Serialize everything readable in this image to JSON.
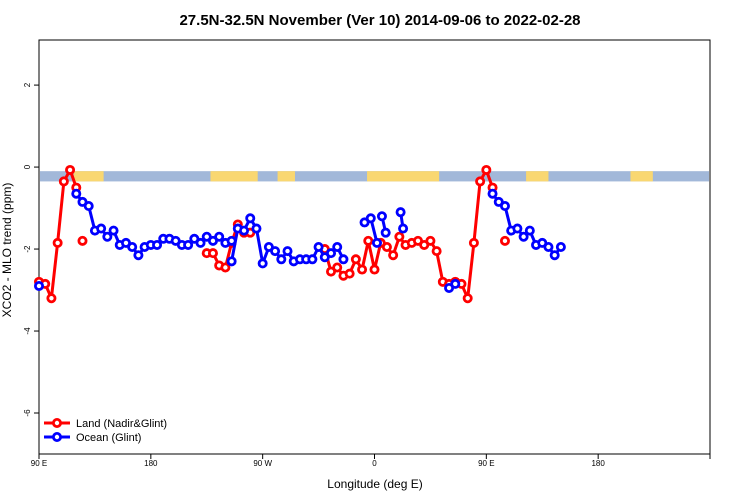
{
  "chart_data": {
    "type": "line",
    "title": "27.5N-32.5N November (Ver 10)   2014-09-06 to 2022-02-28",
    "xlabel": "Longitude (deg E)",
    "ylabel": "XCO2 - MLO trend (ppm)",
    "xlim": [
      -90,
      180
    ],
    "ylim": [
      -7,
      3.1
    ],
    "x_ticks": [
      -90,
      -45,
      0,
      45,
      90,
      135,
      180
    ],
    "x_tick_labels": [
      "90 E",
      "180",
      "90 W",
      "0",
      "90 E",
      "180"
    ],
    "x_tick_values": [
      -90,
      -45,
      0,
      45,
      90,
      135
    ],
    "y_ticks": [
      2,
      0,
      -2,
      -4,
      -6
    ],
    "y_tick_labels": [
      "2",
      "0",
      "-2",
      "-4",
      "-6"
    ],
    "legend": {
      "position": "bottom-left"
    },
    "land_sea_band": {
      "y_range": [
        -0.35,
        -0.1
      ],
      "ocean_color": "#a2b8d9",
      "land_color": "#f9d771",
      "land_segments": [
        [
          -76,
          -64
        ],
        [
          -21,
          -2
        ],
        [
          6,
          13
        ],
        [
          42,
          71
        ],
        [
          106,
          115
        ],
        [
          148,
          157
        ]
      ]
    },
    "series": [
      {
        "name": "Land (Nadir&Glint)",
        "color": "#ff0000",
        "segments": [
          [
            [
              -90,
              -2.8
            ],
            [
              -87.5,
              -2.85
            ],
            [
              -85,
              -3.2
            ],
            [
              -82.5,
              -1.85
            ],
            [
              -80,
              -0.35
            ],
            [
              -77.5,
              -0.07
            ],
            [
              -75,
              -0.5
            ]
          ],
          [
            [
              -72.5,
              -1.8
            ]
          ],
          [
            [
              -22.5,
              -2.1
            ],
            [
              -20,
              -2.1
            ],
            [
              -17.5,
              -2.4
            ],
            [
              -15,
              -2.45
            ],
            [
              -12.5,
              -1.85
            ],
            [
              -10,
              -1.4
            ],
            [
              -7.5,
              -1.6
            ],
            [
              -5,
              -1.6
            ]
          ],
          [
            [
              25,
              -2.0
            ],
            [
              27.5,
              -2.55
            ],
            [
              30,
              -2.45
            ],
            [
              32.5,
              -2.65
            ],
            [
              35,
              -2.6
            ],
            [
              37.5,
              -2.25
            ],
            [
              40,
              -2.5
            ],
            [
              42.5,
              -1.8
            ],
            [
              45,
              -2.5
            ],
            [
              47.5,
              -1.85
            ],
            [
              50,
              -1.95
            ],
            [
              52.5,
              -2.15
            ],
            [
              55,
              -1.7
            ],
            [
              57.5,
              -1.9
            ],
            [
              60,
              -1.85
            ],
            [
              62.5,
              -1.8
            ],
            [
              65,
              -1.9
            ],
            [
              67.5,
              -1.8
            ],
            [
              70,
              -2.05
            ],
            [
              72.5,
              -2.8
            ],
            [
              75,
              -2.85
            ],
            [
              77.5,
              -2.8
            ],
            [
              80,
              -2.85
            ],
            [
              82.5,
              -3.2
            ],
            [
              85,
              -1.85
            ],
            [
              87.5,
              -0.35
            ],
            [
              90,
              -0.07
            ],
            [
              92.5,
              -0.5
            ]
          ],
          [
            [
              97.5,
              -1.8
            ]
          ]
        ]
      },
      {
        "name": "Ocean (Glint)",
        "color": "#0000ff",
        "segments": [
          [
            [
              -90,
              -2.9
            ]
          ],
          [
            [
              -75,
              -0.65
            ],
            [
              -72.5,
              -0.85
            ],
            [
              -70,
              -0.95
            ],
            [
              -67.5,
              -1.55
            ],
            [
              -65,
              -1.5
            ],
            [
              -62.5,
              -1.7
            ],
            [
              -60,
              -1.55
            ],
            [
              -57.5,
              -1.9
            ],
            [
              -55,
              -1.85
            ],
            [
              -52.5,
              -1.95
            ],
            [
              -50,
              -2.15
            ],
            [
              -47.5,
              -1.95
            ],
            [
              -45,
              -1.9
            ],
            [
              -42.5,
              -1.9
            ],
            [
              -40,
              -1.75
            ],
            [
              -37.5,
              -1.75
            ],
            [
              -35,
              -1.8
            ],
            [
              -32.5,
              -1.9
            ],
            [
              -30,
              -1.9
            ],
            [
              -27.5,
              -1.75
            ],
            [
              -25,
              -1.85
            ],
            [
              -22.5,
              -1.7
            ],
            [
              -20,
              -1.8
            ],
            [
              -17.5,
              -1.7
            ],
            [
              -15,
              -1.85
            ],
            [
              -12.5,
              -1.8
            ]
          ],
          [
            [
              -12.5,
              -2.3
            ],
            [
              -10,
              -1.5
            ],
            [
              -7.5,
              -1.55
            ],
            [
              -5,
              -1.25
            ],
            [
              -2.5,
              -1.5
            ],
            [
              0,
              -2.35
            ],
            [
              2.5,
              -1.95
            ],
            [
              5,
              -2.05
            ],
            [
              7.5,
              -2.25
            ],
            [
              10,
              -2.05
            ],
            [
              12.5,
              -2.3
            ],
            [
              15,
              -2.25
            ],
            [
              17.5,
              -2.25
            ],
            [
              20,
              -2.25
            ],
            [
              22.5,
              -1.95
            ],
            [
              25,
              -2.2
            ],
            [
              27.5,
              -2.1
            ],
            [
              30,
              -1.95
            ],
            [
              32.5,
              -2.25
            ]
          ],
          [
            [
              41,
              -1.35
            ],
            [
              43.5,
              -1.25
            ],
            [
              46,
              -1.85
            ]
          ],
          [
            [
              48,
              -1.2
            ],
            [
              49.5,
              -1.6
            ]
          ],
          [
            [
              55.5,
              -1.1
            ],
            [
              56.5,
              -1.5
            ]
          ],
          [
            [
              75,
              -2.95
            ],
            [
              77.5,
              -2.85
            ]
          ],
          [
            [
              92.5,
              -0.65
            ],
            [
              95,
              -0.85
            ],
            [
              97.5,
              -0.95
            ],
            [
              100,
              -1.55
            ],
            [
              102.5,
              -1.5
            ],
            [
              105,
              -1.7
            ],
            [
              107.5,
              -1.55
            ],
            [
              110,
              -1.9
            ],
            [
              112.5,
              -1.85
            ],
            [
              115,
              -1.95
            ],
            [
              117.5,
              -2.15
            ],
            [
              120,
              -1.95
            ]
          ]
        ]
      }
    ]
  }
}
